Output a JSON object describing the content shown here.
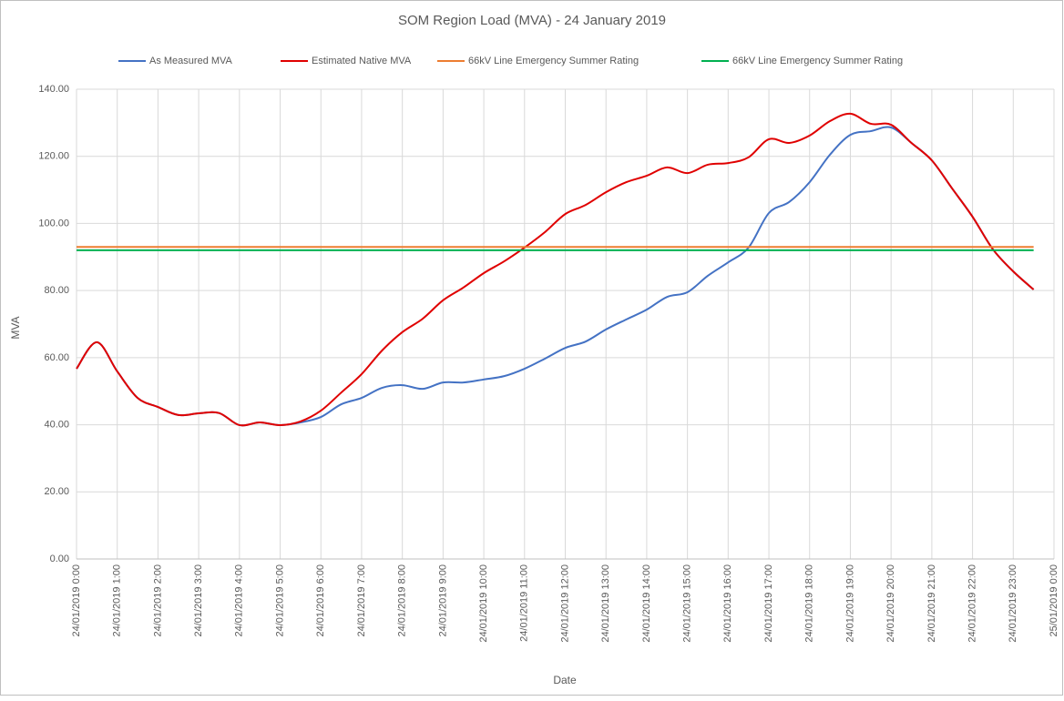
{
  "chart_data": {
    "type": "line",
    "title": "SOM Region Load (MVA) - 24 January 2019",
    "x_label": "Date",
    "y_label": "MVA",
    "grid": true,
    "legend": "top",
    "x": [
      0,
      0.5,
      1,
      1.5,
      2,
      2.5,
      3,
      3.5,
      4,
      4.5,
      5,
      5.5,
      6,
      6.5,
      7,
      7.5,
      8,
      8.5,
      9,
      9.5,
      10,
      10.5,
      11,
      11.5,
      12,
      12.5,
      13,
      13.5,
      14,
      14.5,
      15,
      15.5,
      16,
      16.5,
      17,
      17.5,
      18,
      18.5,
      19,
      19.5,
      20,
      20.5,
      21,
      21.5,
      22,
      22.5,
      23,
      23.5
    ],
    "xlim": [
      0,
      24
    ],
    "xticks": [
      {
        "value": 0,
        "label": "24/01/2019 0:00"
      },
      {
        "value": 1,
        "label": "24/01/2019 1:00"
      },
      {
        "value": 2,
        "label": "24/01/2019 2:00"
      },
      {
        "value": 3,
        "label": "24/01/2019 3:00"
      },
      {
        "value": 4,
        "label": "24/01/2019 4:00"
      },
      {
        "value": 5,
        "label": "24/01/2019 5:00"
      },
      {
        "value": 6,
        "label": "24/01/2019 6:00"
      },
      {
        "value": 7,
        "label": "24/01/2019 7:00"
      },
      {
        "value": 8,
        "label": "24/01/2019 8:00"
      },
      {
        "value": 9,
        "label": "24/01/2019 9:00"
      },
      {
        "value": 10,
        "label": "24/01/2019 10:00"
      },
      {
        "value": 11,
        "label": "24/01/2019 11:00"
      },
      {
        "value": 12,
        "label": "24/01/2019 12:00"
      },
      {
        "value": 13,
        "label": "24/01/2019 13:00"
      },
      {
        "value": 14,
        "label": "24/01/2019 14:00"
      },
      {
        "value": 15,
        "label": "24/01/2019 15:00"
      },
      {
        "value": 16,
        "label": "24/01/2019 16:00"
      },
      {
        "value": 17,
        "label": "24/01/2019 17:00"
      },
      {
        "value": 18,
        "label": "24/01/2019 18:00"
      },
      {
        "value": 19,
        "label": "24/01/2019 19:00"
      },
      {
        "value": 20,
        "label": "24/01/2019 20:00"
      },
      {
        "value": 21,
        "label": "24/01/2019 21:00"
      },
      {
        "value": 22,
        "label": "24/01/2019 22:00"
      },
      {
        "value": 23,
        "label": "24/01/2019 23:00"
      },
      {
        "value": 24,
        "label": "25/01/2019 0:00"
      }
    ],
    "ylim": [
      0,
      140
    ],
    "yticks": [
      {
        "value": 0,
        "label": "0.00"
      },
      {
        "value": 20,
        "label": "20.00"
      },
      {
        "value": 40,
        "label": "40.00"
      },
      {
        "value": 60,
        "label": "60.00"
      },
      {
        "value": 80,
        "label": "80.00"
      },
      {
        "value": 100,
        "label": "100.00"
      },
      {
        "value": 120,
        "label": "120.00"
      },
      {
        "value": 140,
        "label": "140.00"
      }
    ],
    "series": [
      {
        "name": "As Measured MVA",
        "color": "#4472c4",
        "values": [
          56.7,
          64.6,
          55.9,
          48.0,
          45.3,
          42.9,
          43.4,
          43.5,
          39.9,
          40.7,
          39.9,
          40.7,
          42.3,
          46.1,
          48.0,
          51.0,
          51.8,
          50.7,
          52.6,
          52.6,
          53.5,
          54.5,
          56.7,
          59.7,
          62.9,
          64.8,
          68.4,
          71.4,
          74.3,
          78.1,
          79.5,
          84.4,
          88.4,
          92.8,
          103.1,
          106.4,
          112.3,
          120.5,
          126.4,
          127.5,
          128.6,
          124.0,
          118.8,
          110.4,
          102.0,
          92.3,
          85.7,
          80.3
        ]
      },
      {
        "name": "Estimated Native MVA",
        "color": "#e00000",
        "values": [
          56.7,
          64.6,
          55.9,
          48.0,
          45.3,
          42.9,
          43.4,
          43.5,
          39.9,
          40.7,
          39.9,
          41.0,
          44.2,
          49.6,
          55.1,
          62.1,
          67.6,
          71.6,
          77.1,
          80.9,
          85.2,
          88.7,
          92.8,
          97.4,
          102.8,
          105.5,
          109.3,
          112.3,
          114.2,
          116.7,
          115.0,
          117.5,
          118.0,
          119.7,
          125.1,
          124.0,
          126.2,
          130.5,
          132.7,
          129.7,
          129.4,
          124.0,
          118.8,
          110.4,
          102.0,
          92.3,
          85.7,
          80.3
        ]
      },
      {
        "name": "66kV Line Emergency Summer Rating",
        "color": "#ed7d31",
        "values": [
          93,
          93,
          93,
          93,
          93,
          93,
          93,
          93,
          93,
          93,
          93,
          93,
          93,
          93,
          93,
          93,
          93,
          93,
          93,
          93,
          93,
          93,
          93,
          93,
          93,
          93,
          93,
          93,
          93,
          93,
          93,
          93,
          93,
          93,
          93,
          93,
          93,
          93,
          93,
          93,
          93,
          93,
          93,
          93,
          93,
          93,
          93,
          93
        ]
      },
      {
        "name": "66kV Line Emergency Summer Rating",
        "color": "#00b050",
        "values": [
          92,
          92,
          92,
          92,
          92,
          92,
          92,
          92,
          92,
          92,
          92,
          92,
          92,
          92,
          92,
          92,
          92,
          92,
          92,
          92,
          92,
          92,
          92,
          92,
          92,
          92,
          92,
          92,
          92,
          92,
          92,
          92,
          92,
          92,
          92,
          92,
          92,
          92,
          92,
          92,
          92,
          92,
          92,
          92,
          92,
          92,
          92,
          92
        ]
      }
    ]
  }
}
